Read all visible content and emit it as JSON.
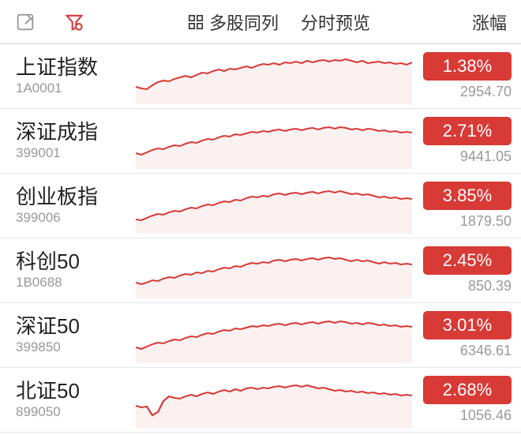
{
  "colors": {
    "red": "#d83a36",
    "red_fill": "#f4d7d6",
    "grey_icon": "#999999",
    "red_icon": "#d83a36",
    "text_main": "#333333"
  },
  "toolbar": {
    "multi_label": "多股同列",
    "preview_label": "分时预览",
    "sort_label": "涨幅"
  },
  "chart_style": {
    "stroke_width": 2,
    "area_opacity": 0.35
  },
  "indices": [
    {
      "name": "上证指数",
      "code": "1A0001",
      "pct": "1.38%",
      "price": "2954.70",
      "points": [
        48,
        50,
        51,
        46,
        42,
        40,
        41,
        38,
        36,
        34,
        36,
        33,
        30,
        31,
        28,
        26,
        28,
        25,
        26,
        24,
        22,
        24,
        21,
        19,
        20,
        18,
        20,
        17,
        18,
        16,
        18,
        15,
        17,
        15,
        14,
        16,
        14,
        15,
        13,
        15,
        17,
        15,
        18,
        17,
        16,
        18,
        17,
        19,
        18,
        20,
        17
      ]
    },
    {
      "name": "深证成指",
      "code": "399001",
      "pct": "2.71%",
      "price": "9441.05",
      "points": [
        50,
        52,
        49,
        46,
        44,
        45,
        42,
        40,
        41,
        38,
        36,
        37,
        34,
        32,
        33,
        30,
        28,
        29,
        26,
        27,
        25,
        23,
        24,
        22,
        23,
        21,
        20,
        22,
        20,
        19,
        21,
        19,
        18,
        20,
        18,
        17,
        19,
        17,
        18,
        20,
        19,
        21,
        19,
        20,
        22,
        21,
        23,
        22,
        24,
        23,
        24
      ]
    },
    {
      "name": "创业板指",
      "code": "399006",
      "pct": "3.85%",
      "price": "1879.50",
      "points": [
        52,
        53,
        50,
        47,
        45,
        46,
        43,
        41,
        42,
        39,
        37,
        38,
        35,
        33,
        34,
        31,
        29,
        30,
        27,
        28,
        25,
        23,
        24,
        22,
        23,
        20,
        19,
        21,
        19,
        18,
        20,
        18,
        17,
        19,
        17,
        16,
        18,
        16,
        18,
        20,
        19,
        21,
        20,
        22,
        24,
        23,
        25,
        24,
        26,
        25,
        26
      ]
    },
    {
      "name": "科创50",
      "code": "1B0688",
      "pct": "2.45%",
      "price": "850.39",
      "points": [
        50,
        52,
        50,
        47,
        48,
        45,
        43,
        44,
        41,
        39,
        40,
        37,
        38,
        35,
        36,
        33,
        31,
        32,
        29,
        30,
        27,
        25,
        26,
        24,
        25,
        22,
        21,
        23,
        21,
        20,
        22,
        20,
        19,
        21,
        19,
        18,
        20,
        19,
        21,
        23,
        21,
        23,
        22,
        24,
        26,
        24,
        26,
        25,
        27,
        26,
        27
      ]
    },
    {
      "name": "深证50",
      "code": "399850",
      "pct": "3.01%",
      "price": "6346.61",
      "points": [
        50,
        52,
        49,
        46,
        44,
        45,
        42,
        40,
        41,
        38,
        36,
        37,
        34,
        32,
        33,
        30,
        28,
        29,
        26,
        27,
        25,
        23,
        24,
        22,
        23,
        21,
        20,
        22,
        20,
        19,
        21,
        19,
        18,
        20,
        18,
        17,
        19,
        17,
        18,
        20,
        19,
        21,
        19,
        20,
        22,
        21,
        23,
        22,
        24,
        23,
        24
      ]
    },
    {
      "name": "北证50",
      "code": "899050",
      "pct": "2.68%",
      "price": "1056.46",
      "points": [
        42,
        44,
        43,
        54,
        50,
        36,
        30,
        32,
        33,
        30,
        28,
        30,
        27,
        25,
        27,
        24,
        22,
        24,
        21,
        23,
        20,
        19,
        21,
        19,
        20,
        18,
        17,
        19,
        17,
        16,
        18,
        16,
        18,
        20,
        19,
        21,
        23,
        22,
        24,
        23,
        25,
        24,
        26,
        25,
        27,
        26,
        28,
        27,
        29,
        28,
        29
      ]
    }
  ]
}
